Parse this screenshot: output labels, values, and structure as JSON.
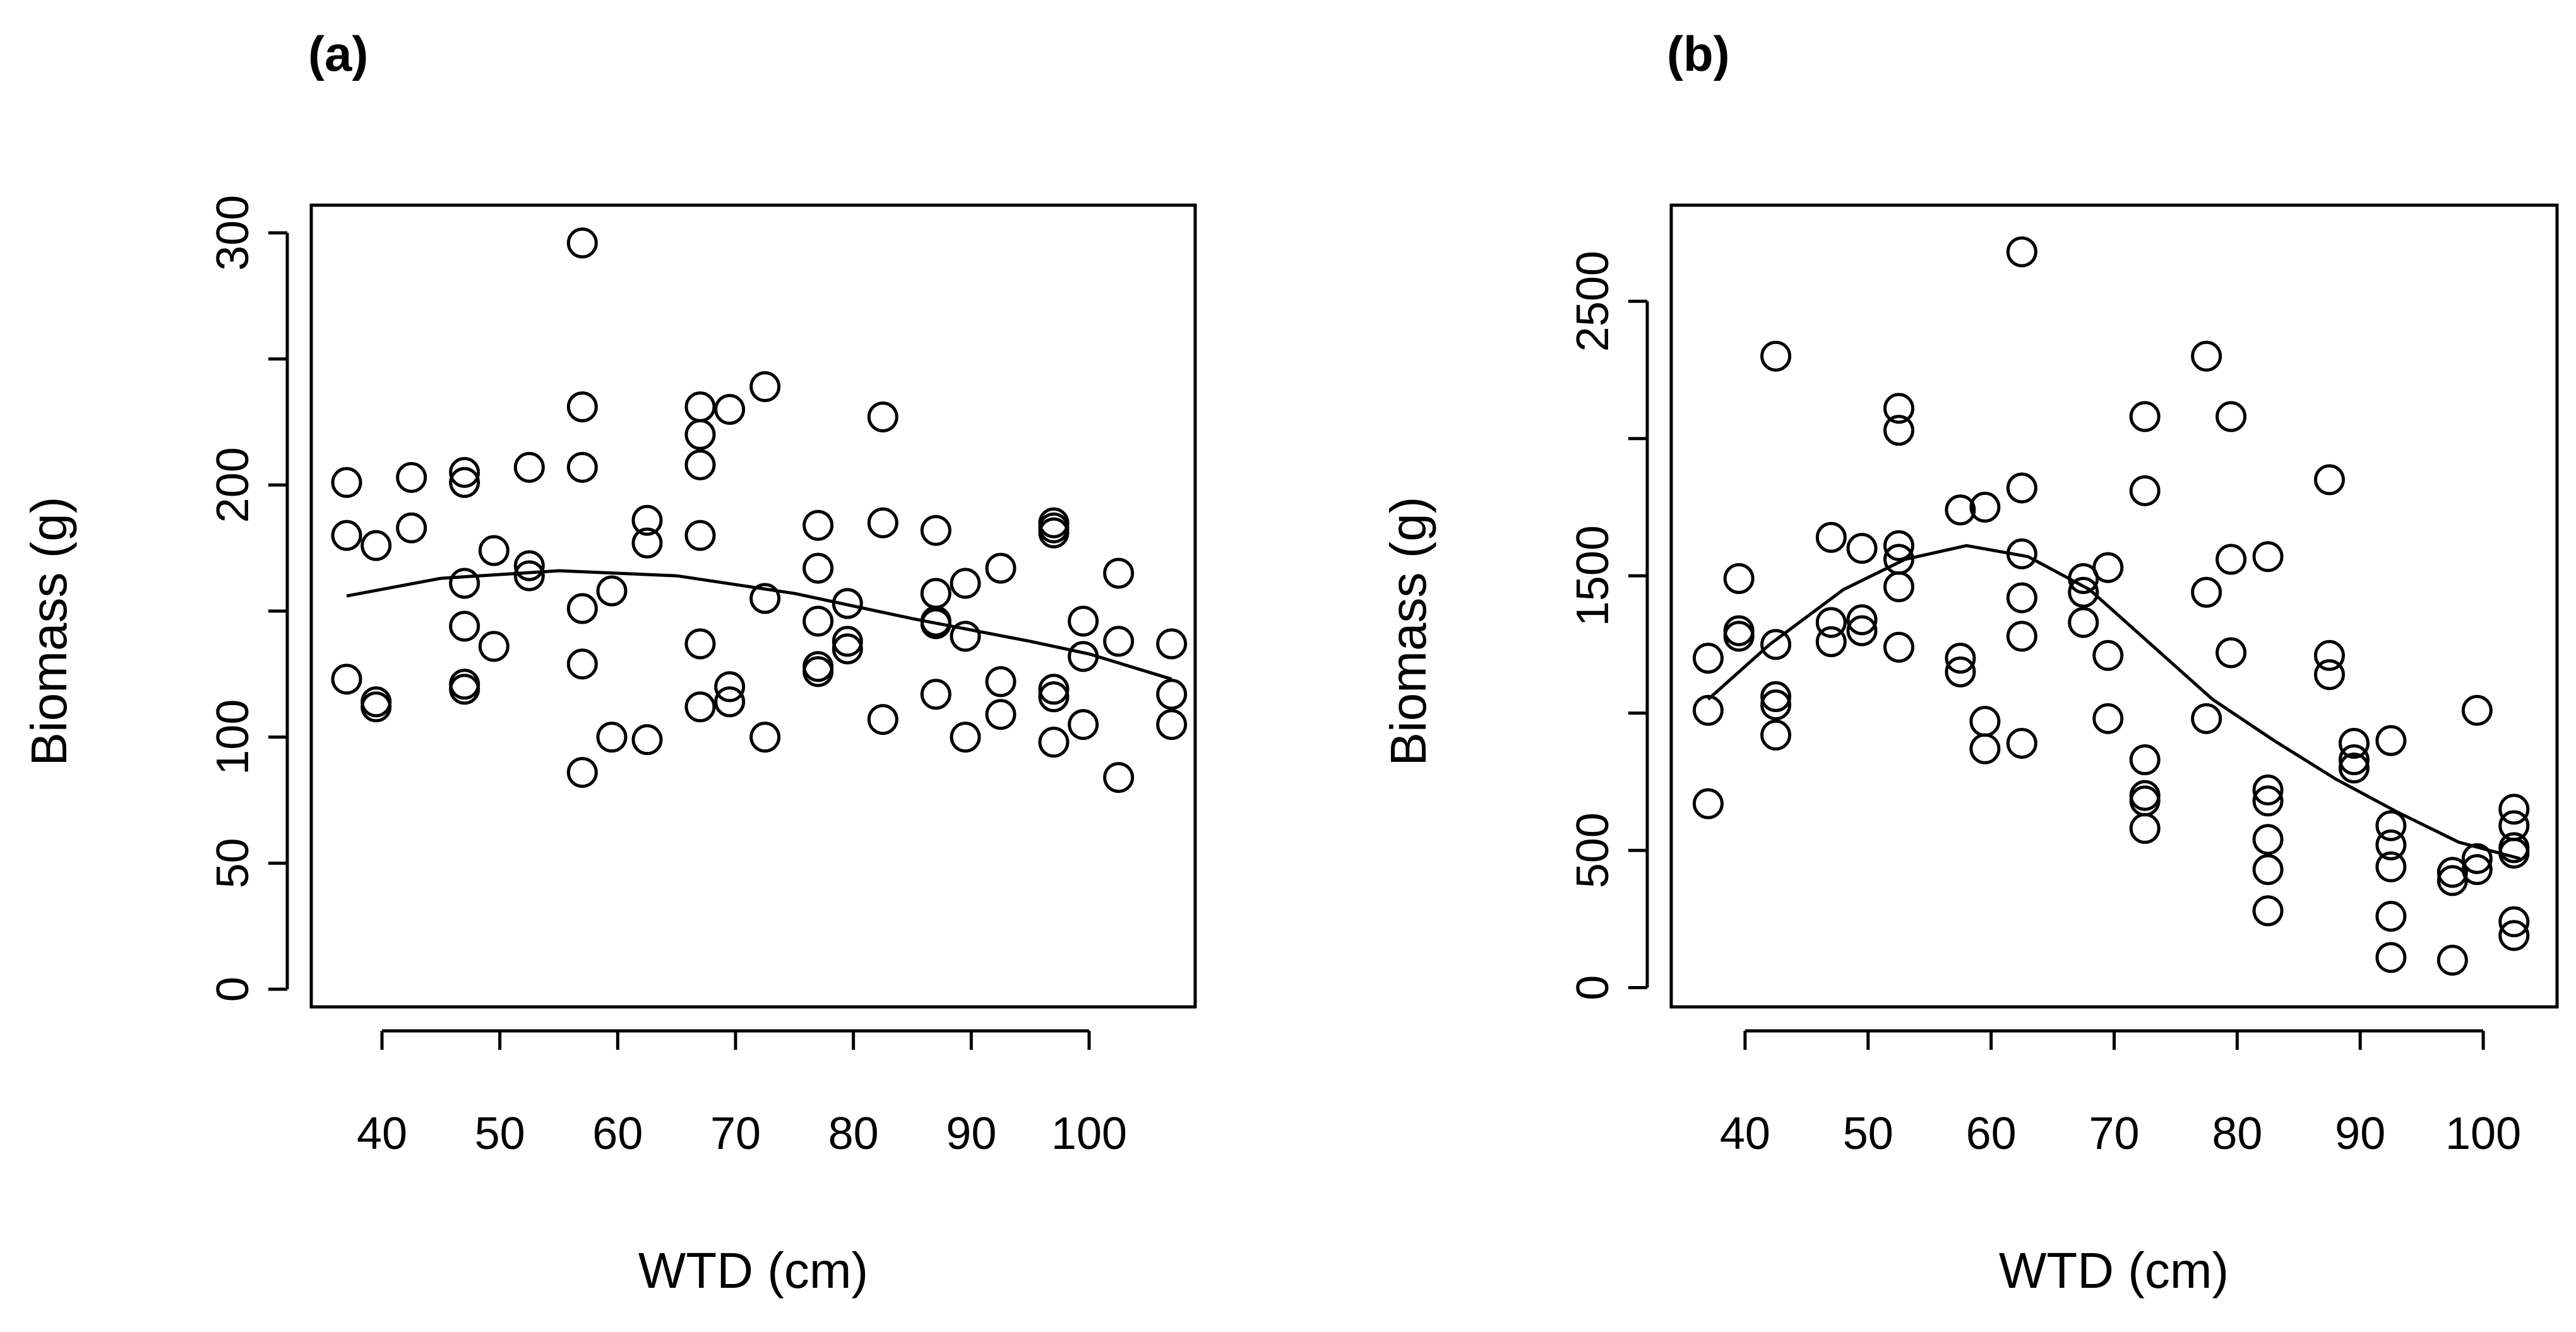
{
  "chart_data": [
    {
      "type": "scatter",
      "panel_label": "(a)",
      "xlabel": "WTD (cm)",
      "ylabel": "Biomass (g)",
      "xlim": [
        34,
        109
      ],
      "ylim": [
        -7,
        311
      ],
      "x_ticks": [
        40,
        50,
        60,
        70,
        80,
        90,
        100
      ],
      "y_ticks": [
        0,
        50,
        100,
        150,
        200,
        250,
        300
      ],
      "y_tick_labels": [
        "0",
        "50",
        "100",
        "",
        "200",
        "",
        "300"
      ],
      "points": [
        [
          37,
          201
        ],
        [
          37,
          180
        ],
        [
          37,
          123
        ],
        [
          39.5,
          176
        ],
        [
          39.5,
          114
        ],
        [
          39.5,
          112
        ],
        [
          42.5,
          203
        ],
        [
          42.5,
          183
        ],
        [
          47,
          205
        ],
        [
          47,
          201
        ],
        [
          47,
          161
        ],
        [
          47,
          144
        ],
        [
          47,
          121
        ],
        [
          47,
          119
        ],
        [
          49.5,
          174
        ],
        [
          49.5,
          136
        ],
        [
          52.5,
          207
        ],
        [
          52.5,
          168
        ],
        [
          52.5,
          164
        ],
        [
          57,
          296
        ],
        [
          57,
          231
        ],
        [
          57,
          207
        ],
        [
          57,
          151
        ],
        [
          57,
          129
        ],
        [
          57,
          86
        ],
        [
          59.5,
          158
        ],
        [
          59.5,
          100
        ],
        [
          62.5,
          186
        ],
        [
          62.5,
          177
        ],
        [
          62.5,
          99
        ],
        [
          67,
          231
        ],
        [
          67,
          220
        ],
        [
          67,
          208
        ],
        [
          67,
          180
        ],
        [
          67,
          137
        ],
        [
          67,
          112
        ],
        [
          69.5,
          230
        ],
        [
          69.5,
          120
        ],
        [
          69.5,
          114
        ],
        [
          72.5,
          239
        ],
        [
          72.5,
          155
        ],
        [
          72.5,
          100
        ],
        [
          77,
          184
        ],
        [
          77,
          167
        ],
        [
          77,
          146
        ],
        [
          77,
          128
        ],
        [
          77,
          126
        ],
        [
          79.5,
          153
        ],
        [
          79.5,
          138
        ],
        [
          79.5,
          135
        ],
        [
          82.5,
          227
        ],
        [
          82.5,
          185
        ],
        [
          82.5,
          107
        ],
        [
          87,
          182
        ],
        [
          87,
          157
        ],
        [
          87,
          146
        ],
        [
          87,
          145
        ],
        [
          87,
          117
        ],
        [
          89.5,
          161
        ],
        [
          89.5,
          140
        ],
        [
          89.5,
          100
        ],
        [
          92.5,
          167
        ],
        [
          92.5,
          122
        ],
        [
          92.5,
          109
        ],
        [
          97,
          185
        ],
        [
          97,
          183
        ],
        [
          97,
          181
        ],
        [
          97,
          119
        ],
        [
          97,
          116
        ],
        [
          97,
          98
        ],
        [
          99.5,
          146
        ],
        [
          99.5,
          132
        ],
        [
          99.5,
          105
        ],
        [
          102.5,
          165
        ],
        [
          102.5,
          138
        ],
        [
          102.5,
          84
        ],
        [
          107,
          137
        ],
        [
          107,
          117
        ],
        [
          107,
          105
        ]
      ],
      "curve": [
        [
          37,
          156
        ],
        [
          45,
          163
        ],
        [
          55,
          166
        ],
        [
          65,
          164
        ],
        [
          75,
          157
        ],
        [
          85,
          147
        ],
        [
          95,
          138
        ],
        [
          100,
          133
        ],
        [
          107,
          123
        ]
      ]
    },
    {
      "type": "scatter",
      "panel_label": "(b)",
      "xlabel": "WTD (cm)",
      "ylabel": "Biomass (g)",
      "xlim": [
        34,
        106
      ],
      "ylim": [
        -70,
        2850
      ],
      "x_ticks": [
        40,
        50,
        60,
        70,
        80,
        90,
        100
      ],
      "y_ticks": [
        0,
        500,
        1000,
        1500,
        2000,
        2500
      ],
      "y_tick_labels": [
        "0",
        "500",
        "",
        "1500",
        "",
        "2500"
      ],
      "points": [
        [
          37,
          1200
        ],
        [
          37,
          1010
        ],
        [
          37,
          670
        ],
        [
          39.5,
          1490
        ],
        [
          39.5,
          1300
        ],
        [
          39.5,
          1280
        ],
        [
          42.5,
          2300
        ],
        [
          42.5,
          1250
        ],
        [
          42.5,
          1060
        ],
        [
          42.5,
          1030
        ],
        [
          42.5,
          920
        ],
        [
          47,
          1640
        ],
        [
          47,
          1330
        ],
        [
          47,
          1260
        ],
        [
          49.5,
          1600
        ],
        [
          49.5,
          1340
        ],
        [
          49.5,
          1300
        ],
        [
          52.5,
          2110
        ],
        [
          52.5,
          2030
        ],
        [
          52.5,
          1610
        ],
        [
          52.5,
          1560
        ],
        [
          52.5,
          1460
        ],
        [
          52.5,
          1240
        ],
        [
          57.5,
          1740
        ],
        [
          57.5,
          1200
        ],
        [
          57.5,
          1150
        ],
        [
          59.5,
          1750
        ],
        [
          59.5,
          970
        ],
        [
          59.5,
          870
        ],
        [
          62.5,
          2680
        ],
        [
          62.5,
          1820
        ],
        [
          62.5,
          1580
        ],
        [
          62.5,
          1420
        ],
        [
          62.5,
          1280
        ],
        [
          62.5,
          890
        ],
        [
          67.5,
          1490
        ],
        [
          67.5,
          1440
        ],
        [
          67.5,
          1330
        ],
        [
          69.5,
          1530
        ],
        [
          69.5,
          1210
        ],
        [
          69.5,
          980
        ],
        [
          72.5,
          2080
        ],
        [
          72.5,
          1810
        ],
        [
          72.5,
          830
        ],
        [
          72.5,
          700
        ],
        [
          72.5,
          680
        ],
        [
          72.5,
          580
        ],
        [
          77.5,
          2300
        ],
        [
          77.5,
          1440
        ],
        [
          77.5,
          980
        ],
        [
          79.5,
          2080
        ],
        [
          79.5,
          1560
        ],
        [
          79.5,
          1220
        ],
        [
          82.5,
          1570
        ],
        [
          82.5,
          720
        ],
        [
          82.5,
          680
        ],
        [
          82.5,
          540
        ],
        [
          82.5,
          430
        ],
        [
          82.5,
          280
        ],
        [
          87.5,
          1850
        ],
        [
          87.5,
          1210
        ],
        [
          87.5,
          1140
        ],
        [
          89.5,
          890
        ],
        [
          89.5,
          830
        ],
        [
          89.5,
          800
        ],
        [
          92.5,
          900
        ],
        [
          92.5,
          590
        ],
        [
          92.5,
          520
        ],
        [
          92.5,
          440
        ],
        [
          92.5,
          260
        ],
        [
          92.5,
          110
        ],
        [
          97.5,
          420
        ],
        [
          97.5,
          390
        ],
        [
          97.5,
          100
        ],
        [
          99.5,
          1010
        ],
        [
          99.5,
          470
        ],
        [
          99.5,
          430
        ],
        [
          102.5,
          650
        ],
        [
          102.5,
          590
        ],
        [
          102.5,
          510
        ],
        [
          102.5,
          490
        ],
        [
          102.5,
          240
        ],
        [
          102.5,
          190
        ]
      ],
      "curve": [
        [
          37,
          1050
        ],
        [
          42,
          1250
        ],
        [
          48,
          1450
        ],
        [
          53,
          1560
        ],
        [
          58,
          1610
        ],
        [
          63,
          1570
        ],
        [
          68,
          1450
        ],
        [
          73,
          1250
        ],
        [
          78,
          1050
        ],
        [
          83,
          900
        ],
        [
          88,
          760
        ],
        [
          93,
          640
        ],
        [
          98,
          530
        ],
        [
          103,
          470
        ]
      ]
    }
  ]
}
